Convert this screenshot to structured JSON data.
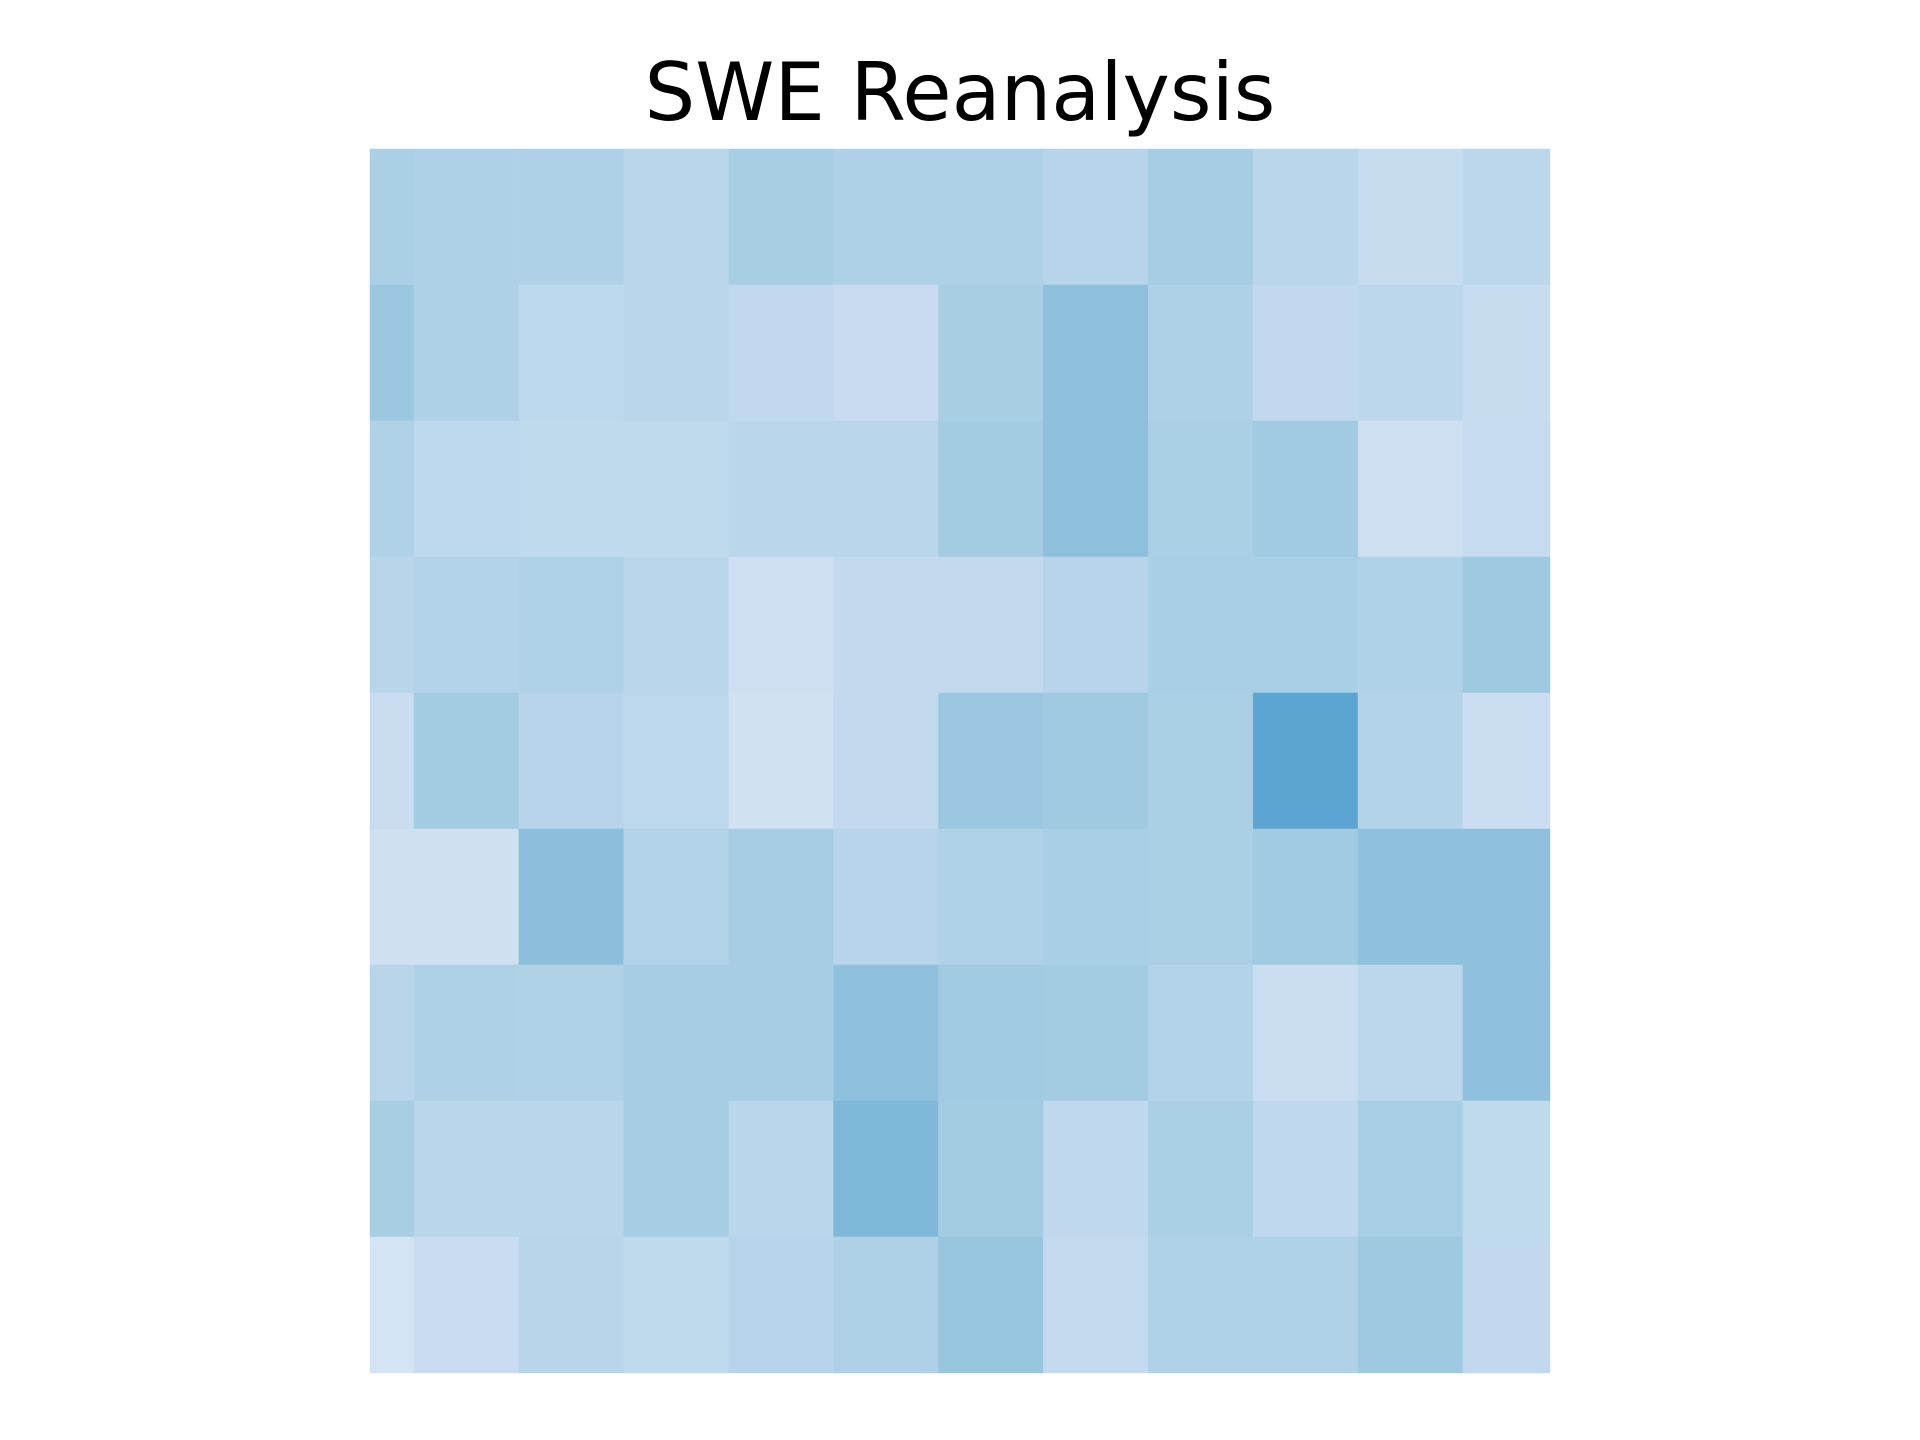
{
  "chart_data": {
    "type": "heatmap",
    "title": "SWE Reanalysis",
    "cells": [
      [
        "#abcfe5",
        "#afd1e7",
        "#afd1e7",
        "#bad6eb",
        "#a8cee4",
        "#afd1e7",
        "#afd1e7",
        "#b7d4ea",
        "#a6cde3",
        "#bad6eb",
        "#c8dcf0",
        "#bcd7ec"
      ],
      [
        "#9bc8e0",
        "#afd1e7",
        "#bcd8ec",
        "#bad6eb",
        "#c2d8ee",
        "#c8dbf0",
        "#a8cee4",
        "#8fc1de",
        "#afd1e7",
        "#c2d8ee",
        "#bcd7ec",
        "#c8dcf0"
      ],
      [
        "#b0d2e7",
        "#bed8ed",
        "#bfd9ed",
        "#bfd9ed",
        "#bad6eb",
        "#bad6eb",
        "#a3cce3",
        "#8dc0dd",
        "#abcfe5",
        "#a0cbe2",
        "#cddff1",
        "#c6dbef"
      ],
      [
        "#b8d5ea",
        "#b3d3e8",
        "#b0d2e7",
        "#bad6eb",
        "#cddff1",
        "#c2d9ee",
        "#c2d9ee",
        "#b7d4ea",
        "#a8cfe5",
        "#a8cfe5",
        "#b0d2e7",
        "#9dc9e1"
      ],
      [
        "#c9dcf0",
        "#a3cce3",
        "#b7d4ea",
        "#bdd8ec",
        "#d0e1f2",
        "#c2d9ee",
        "#9bc8e0",
        "#9fcae1",
        "#abcfe5",
        "#5ca4d1",
        "#b3d3e8",
        "#cbdef1"
      ],
      [
        "#cfe0f1",
        "#cfe0f1",
        "#8bbfdd",
        "#b3d3e8",
        "#a6cde3",
        "#b7d4ea",
        "#b0d2e7",
        "#a8cfe5",
        "#abcfe5",
        "#a0cbe2",
        "#8fc1de",
        "#8fc1de"
      ],
      [
        "#b8d5ea",
        "#afd1e7",
        "#b0d2e7",
        "#a6cde3",
        "#a6cde3",
        "#8fc1de",
        "#a0cbe2",
        "#a3cce3",
        "#b3d3e8",
        "#cbdef1",
        "#bcd7ec",
        "#8fc1de"
      ],
      [
        "#a8cee4",
        "#bad6eb",
        "#bad6eb",
        "#a6cde3",
        "#bad6eb",
        "#80b8da",
        "#a3cce3",
        "#c0d8ed",
        "#abcfe5",
        "#c0d8ed",
        "#a8cfe5",
        "#bfd9ed"
      ],
      [
        "#d4e4f4",
        "#cadcf1",
        "#b8d5ea",
        "#bfd9ed",
        "#b7d4ea",
        "#afd1e7",
        "#98c6df",
        "#c4daef",
        "#b0d2e7",
        "#b0d2e7",
        "#9dc9e1",
        "#c2d8ee"
      ]
    ]
  }
}
